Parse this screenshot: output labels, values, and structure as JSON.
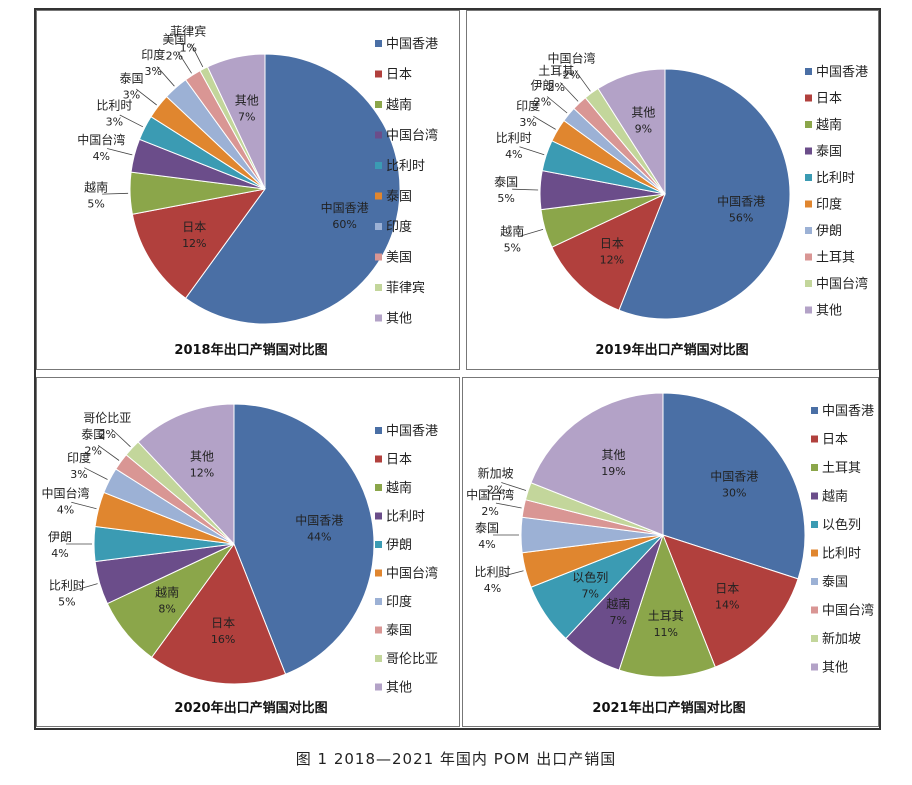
{
  "chart_data": [
    {
      "type": "pie",
      "title": "2018年出口产销国对比图",
      "slices": [
        {
          "label": "中国香港",
          "value": 60,
          "pct": "60%",
          "color": "#4a6fa5"
        },
        {
          "label": "日本",
          "value": 12,
          "pct": "12%",
          "color": "#b1403d"
        },
        {
          "label": "越南",
          "value": 5,
          "pct": "5%",
          "color": "#8ba64a"
        },
        {
          "label": "中国台湾",
          "value": 4,
          "pct": "4%",
          "color": "#6b4d8a"
        },
        {
          "label": "比利时",
          "value": 3,
          "pct": "3%",
          "color": "#3b9bb3"
        },
        {
          "label": "泰国",
          "value": 3,
          "pct": "3%",
          "color": "#e0862f"
        },
        {
          "label": "印度",
          "value": 3,
          "pct": "3%",
          "color": "#9cb1d5"
        },
        {
          "label": "美国",
          "value": 2,
          "pct": "2%",
          "color": "#d99694"
        },
        {
          "label": "菲律宾",
          "value": 1,
          "pct": "1%",
          "color": "#c3d69b"
        },
        {
          "label": "其他",
          "value": 7,
          "pct": "7%",
          "color": "#b3a2c7"
        }
      ]
    },
    {
      "type": "pie",
      "title": "2019年出口产销国对比图",
      "slices": [
        {
          "label": "中国香港",
          "value": 56,
          "pct": "56%",
          "color": "#4a6fa5"
        },
        {
          "label": "日本",
          "value": 12,
          "pct": "12%",
          "color": "#b1403d"
        },
        {
          "label": "越南",
          "value": 5,
          "pct": "5%",
          "color": "#8ba64a"
        },
        {
          "label": "泰国",
          "value": 5,
          "pct": "5%",
          "color": "#6b4d8a"
        },
        {
          "label": "比利时",
          "value": 4,
          "pct": "4%",
          "color": "#3b9bb3"
        },
        {
          "label": "印度",
          "value": 3,
          "pct": "3%",
          "color": "#e0862f"
        },
        {
          "label": "伊朗",
          "value": 2,
          "pct": "2%",
          "color": "#9cb1d5"
        },
        {
          "label": "土耳其",
          "value": 2,
          "pct": "2%",
          "color": "#d99694"
        },
        {
          "label": "中国台湾",
          "value": 2,
          "pct": "2%",
          "color": "#c3d69b"
        },
        {
          "label": "其他",
          "value": 9,
          "pct": "9%",
          "color": "#b3a2c7"
        }
      ]
    },
    {
      "type": "pie",
      "title": "2020年出口产销国对比图",
      "slices": [
        {
          "label": "中国香港",
          "value": 44,
          "pct": "44%",
          "color": "#4a6fa5"
        },
        {
          "label": "日本",
          "value": 16,
          "pct": "16%",
          "color": "#b1403d"
        },
        {
          "label": "越南",
          "value": 8,
          "pct": "8%",
          "color": "#8ba64a"
        },
        {
          "label": "比利时",
          "value": 5,
          "pct": "5%",
          "color": "#6b4d8a"
        },
        {
          "label": "伊朗",
          "value": 4,
          "pct": "4%",
          "color": "#3b9bb3"
        },
        {
          "label": "中国台湾",
          "value": 4,
          "pct": "4%",
          "color": "#e0862f"
        },
        {
          "label": "印度",
          "value": 3,
          "pct": "3%",
          "color": "#9cb1d5"
        },
        {
          "label": "泰国",
          "value": 2,
          "pct": "2%",
          "color": "#d99694"
        },
        {
          "label": "哥伦比亚",
          "value": 2,
          "pct": "2%",
          "color": "#c3d69b"
        },
        {
          "label": "其他",
          "value": 12,
          "pct": "12%",
          "color": "#b3a2c7"
        }
      ]
    },
    {
      "type": "pie",
      "title": "2021年出口产销国对比图",
      "slices": [
        {
          "label": "中国香港",
          "value": 30,
          "pct": "30%",
          "color": "#4a6fa5"
        },
        {
          "label": "日本",
          "value": 14,
          "pct": "14%",
          "color": "#b1403d"
        },
        {
          "label": "土耳其",
          "value": 11,
          "pct": "11%",
          "color": "#8ba64a"
        },
        {
          "label": "越南",
          "value": 7,
          "pct": "7%",
          "color": "#6b4d8a"
        },
        {
          "label": "以色列",
          "value": 7,
          "pct": "7%",
          "color": "#3b9bb3"
        },
        {
          "label": "比利时",
          "value": 4,
          "pct": "4%",
          "color": "#e0862f"
        },
        {
          "label": "泰国",
          "value": 4,
          "pct": "4%",
          "color": "#9cb1d5"
        },
        {
          "label": "中国台湾",
          "value": 2,
          "pct": "2%",
          "color": "#d99694"
        },
        {
          "label": "新加坡",
          "value": 2,
          "pct": "2%",
          "color": "#c3d69b"
        },
        {
          "label": "其他",
          "value": 19,
          "pct": "19%",
          "color": "#b3a2c7"
        }
      ]
    }
  ],
  "caption": "图 1  2018—2021 年国内 POM 出口产销国"
}
